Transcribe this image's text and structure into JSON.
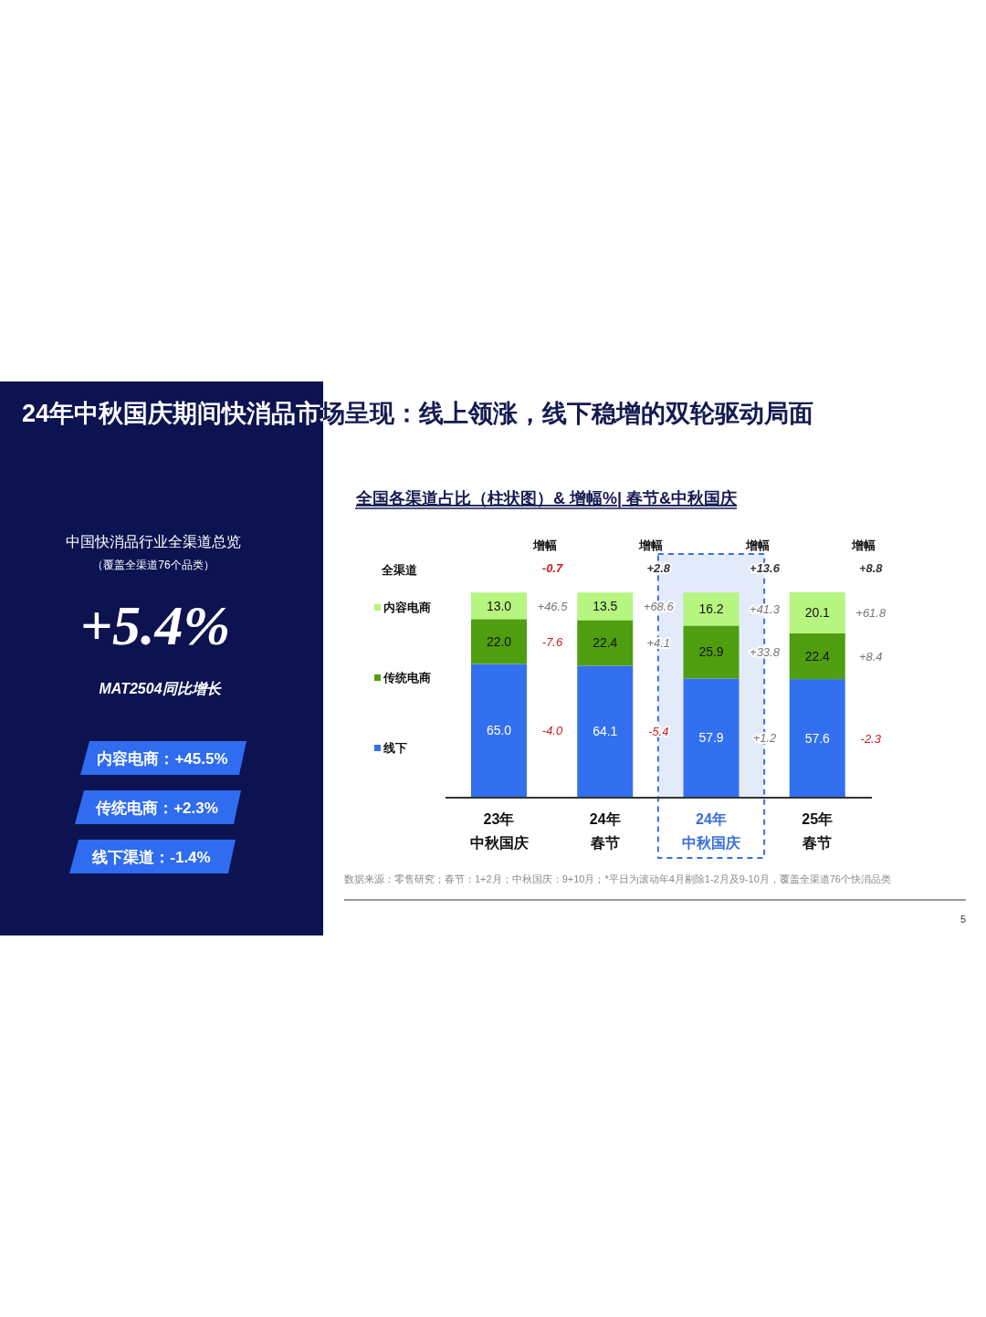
{
  "chart_data": [
    {
      "type": "other",
      "annotations": [
        "中国快消品行业全渠道总览",
        "（覆盖全渠道76个品类）",
        "+5.4%",
        "MAT2504同比增长",
        "内容电商：+45.5%",
        "传统电商：+2.3%",
        "线下渠道：-1.4%"
      ]
    },
    {
      "type": "bar",
      "stacked": true,
      "legend": "left",
      "title": "24年中秋国庆期间快消品市场呈现：线上领涨，线下稳增的双轮驱动局面",
      "subtitle": "全国各渠道占比（柱状图）& 增幅%| 春节&中秋国庆",
      "categories": [
        "23年中秋国庆",
        "24年春节",
        "24年中秋国庆",
        "25年春节"
      ],
      "series": [
        {
          "name": "线下",
          "color": "#3370f0",
          "values": [
            65.0,
            64.1,
            57.9,
            57.6
          ],
          "value_labels": [
            "65.0",
            "64.1",
            "57.9",
            "57.6"
          ]
        },
        {
          "name": "传统电商",
          "color": "#4f9e0f",
          "values": [
            22.0,
            22.4,
            25.9,
            22.4
          ],
          "value_labels": [
            "22.0",
            "22.4",
            "25.9",
            "22.4"
          ]
        },
        {
          "name": "内容电商",
          "color": "#b6f57f",
          "values": [
            13.0,
            13.5,
            16.2,
            20.1
          ],
          "value_labels": [
            "13.0",
            "13.5",
            "16.2",
            "20.1"
          ]
        }
      ],
      "bands": [
        {
          "axis": "x",
          "from": "24年中秋国庆",
          "to": "24年中秋国庆",
          "color": "#3a6fe0"
        }
      ],
      "annotations": [
        "全渠道",
        "增幅",
        "-0.7",
        "+46.5",
        "-7.6",
        "-4.0",
        "增幅",
        "+2.8",
        "+68.6",
        "+4.1",
        "-5.4",
        "增幅",
        "+13.6",
        "+41.3",
        "+33.8",
        "+1.2",
        "增幅",
        "+8.8",
        "+61.8",
        "+8.4",
        "-2.3",
        "数据来源：零售研究；春节：1+2月；中秋国庆：9+10月；*平日为滚动年4月剔除1-2月及9-10月，覆盖全渠道76个快消品类",
        "5"
      ]
    }
  ]
}
